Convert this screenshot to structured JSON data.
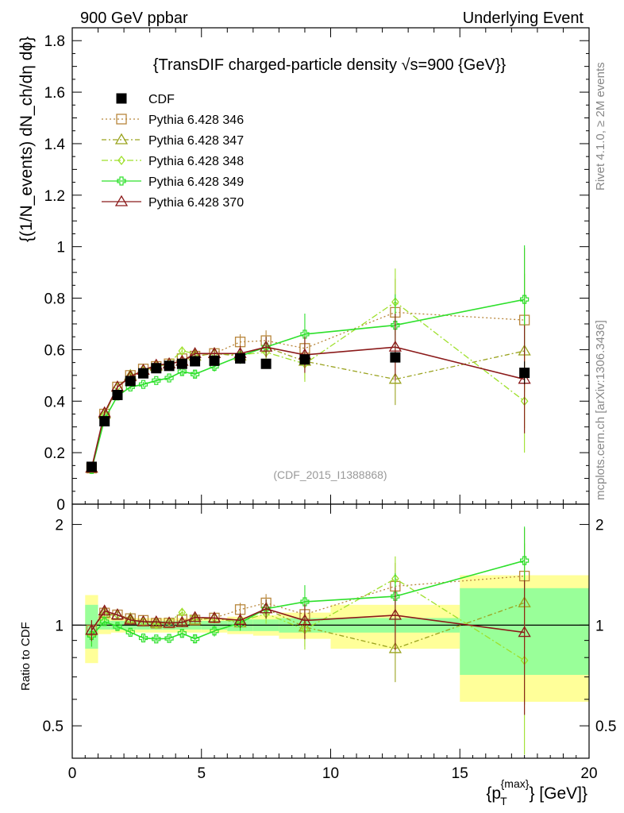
{
  "header": {
    "left": "900 GeV ppbar",
    "right": "Underlying Event"
  },
  "side": {
    "rivet": "Rivet 4.1.0, ≥ 2M events",
    "mcplots": "mcplots.cern.ch [arXiv:1306.3436]"
  },
  "colors": {
    "cdf": "#000000",
    "p346": "#b8863b",
    "p347": "#9aa31f",
    "p348": "#9ee02b",
    "p349": "#2de02b",
    "p370": "#8b1a1a",
    "band_yellow": "#ffff99",
    "band_green": "#99ff99"
  },
  "chart_data": {
    "type": "line",
    "title": "{TransDIF charged-particle density √s=900 {GeV}}",
    "xlabel": "{p_T^{max}} [GeV]}",
    "xlabel_main": "{p",
    "xlabel_sub": "T",
    "xlabel_sup": "{max}",
    "xlabel_tail": "} [GeV]}",
    "ylabel": "{(1/N_events) dN_ch/dη dϕ}",
    "ratio_ylabel": "Ratio to CDF",
    "watermark": "(CDF_2015_I1388868)",
    "xlim": [
      0,
      20
    ],
    "ylim": [
      0,
      1.85
    ],
    "ratio_ylim": [
      0.4,
      2.3
    ],
    "x_ticks": [
      "0",
      "5",
      "10",
      "15",
      "20"
    ],
    "y_ticks": [
      "0",
      "0.2",
      "0.4",
      "0.6",
      "0.8",
      "1",
      "1.2",
      "1.4",
      "1.6",
      "1.8"
    ],
    "ratio_ticks": [
      "0.5",
      "1",
      "2"
    ],
    "x": [
      0.75,
      1.25,
      1.75,
      2.25,
      2.75,
      3.25,
      3.75,
      4.25,
      4.75,
      5.5,
      6.5,
      7.5,
      9.0,
      12.5,
      17.5
    ],
    "bins": [
      0.5,
      1.0,
      1.5,
      2.0,
      2.5,
      3.0,
      3.5,
      4.0,
      4.5,
      5.0,
      6.0,
      7.0,
      8.0,
      10.0,
      15.0,
      20.0
    ],
    "cdf": {
      "name": "CDF",
      "values": [
        0.145,
        0.322,
        0.424,
        0.478,
        0.508,
        0.528,
        0.537,
        0.545,
        0.555,
        0.557,
        0.566,
        0.545,
        0.562,
        0.57,
        0.51
      ],
      "rel_err_total": [
        0.23,
        0.06,
        0.05,
        0.05,
        0.05,
        0.05,
        0.05,
        0.05,
        0.05,
        0.05,
        0.06,
        0.07,
        0.09,
        0.15,
        0.41
      ],
      "rel_err_stat": [
        0.15,
        0.03,
        0.03,
        0.03,
        0.03,
        0.03,
        0.03,
        0.03,
        0.03,
        0.03,
        0.04,
        0.04,
        0.05,
        0.05,
        0.29
      ]
    },
    "series": [
      {
        "name": "Pythia 6.428 346",
        "marker": "square",
        "dash": "2,3",
        "values": [
          0.14,
          0.35,
          0.455,
          0.5,
          0.525,
          0.535,
          0.545,
          0.565,
          0.575,
          0.585,
          0.63,
          0.635,
          0.605,
          0.745,
          0.715
        ],
        "errors": [
          0.01,
          0.01,
          0.01,
          0.01,
          0.01,
          0.01,
          0.01,
          0.015,
          0.015,
          0.02,
          0.03,
          0.04,
          0.06,
          0.13,
          0.28
        ]
      },
      {
        "name": "Pythia 6.428 347",
        "marker": "triangle",
        "dash": "6,3,2,3",
        "values": [
          0.14,
          0.35,
          0.455,
          0.5,
          0.52,
          0.535,
          0.545,
          0.555,
          0.575,
          0.585,
          0.575,
          0.61,
          0.555,
          0.485,
          0.595
        ],
        "errors": [
          0.01,
          0.01,
          0.01,
          0.01,
          0.01,
          0.01,
          0.01,
          0.015,
          0.015,
          0.02,
          0.03,
          0.04,
          0.07,
          0.1,
          0.3
        ]
      },
      {
        "name": "Pythia 6.428 348",
        "marker": "diamond",
        "dash": "8,3,2,3",
        "values": [
          0.135,
          0.345,
          0.455,
          0.495,
          0.52,
          0.53,
          0.55,
          0.595,
          0.585,
          0.585,
          0.58,
          0.59,
          0.545,
          0.785,
          0.4
        ],
        "errors": [
          0.01,
          0.01,
          0.01,
          0.01,
          0.01,
          0.01,
          0.01,
          0.015,
          0.015,
          0.02,
          0.03,
          0.04,
          0.07,
          0.13,
          0.2
        ]
      },
      {
        "name": "Pythia 6.428 349",
        "marker": "cross",
        "dash": "",
        "values": [
          0.135,
          0.33,
          0.42,
          0.455,
          0.465,
          0.48,
          0.49,
          0.515,
          0.505,
          0.535,
          0.575,
          0.61,
          0.66,
          0.695,
          0.795
        ],
        "errors": [
          0.01,
          0.01,
          0.01,
          0.01,
          0.01,
          0.01,
          0.01,
          0.015,
          0.015,
          0.02,
          0.03,
          0.04,
          0.08,
          0.12,
          0.21
        ]
      },
      {
        "name": "Pythia 6.428 370",
        "marker": "triangle",
        "dash": "",
        "values": [
          0.14,
          0.355,
          0.455,
          0.495,
          0.52,
          0.54,
          0.545,
          0.555,
          0.585,
          0.585,
          0.585,
          0.61,
          0.58,
          0.61,
          0.485
        ],
        "errors": [
          0.01,
          0.01,
          0.01,
          0.01,
          0.01,
          0.01,
          0.01,
          0.015,
          0.015,
          0.02,
          0.03,
          0.04,
          0.07,
          0.13,
          0.21
        ]
      }
    ]
  }
}
